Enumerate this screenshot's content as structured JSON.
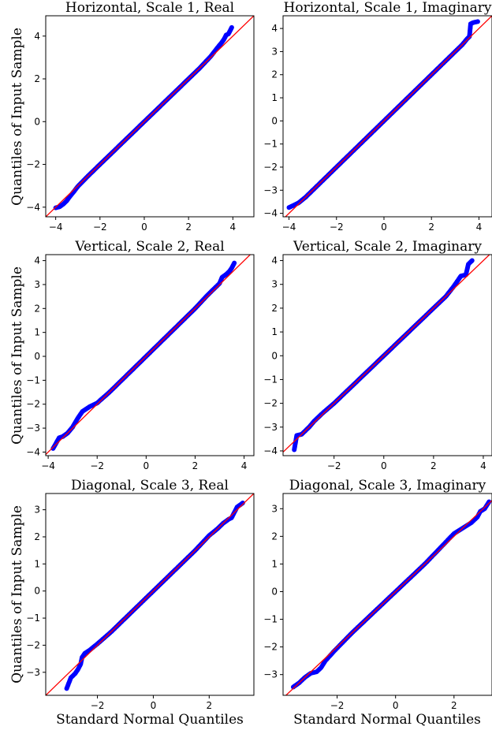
{
  "figure": {
    "ylabel": "Quantiles of Input Sample",
    "xlabel": "Standard Normal Quantiles",
    "ref_line_color": "#ff0000",
    "point_color": "#0000ff"
  },
  "chart_data": [
    {
      "type": "scatter",
      "title": "Horizontal, Scale 1, Real",
      "xlim": [
        -4.45,
        4.95
      ],
      "ylim": [
        -4.45,
        4.95
      ],
      "xticks": [
        -4,
        -2,
        0,
        2,
        4
      ],
      "xtick_labels": [
        "−4",
        "−2",
        "0",
        "2",
        "4"
      ],
      "yticks": [
        -4,
        -2,
        0,
        2,
        4
      ],
      "ytick_labels": [
        "−4",
        "−2",
        "0",
        "2",
        "4"
      ],
      "show_xlabel": false,
      "show_ylabel": true,
      "points": [
        [
          -4.0,
          -4.03
        ],
        [
          -3.82,
          -3.98
        ],
        [
          -3.65,
          -3.85
        ],
        [
          -3.5,
          -3.7
        ],
        [
          -3.4,
          -3.55
        ],
        [
          -3.2,
          -3.3
        ],
        [
          -3.0,
          -3.03
        ],
        [
          -2.5,
          -2.5
        ],
        [
          -2.0,
          -2.0
        ],
        [
          -1.5,
          -1.5
        ],
        [
          -1.0,
          -1.0
        ],
        [
          -0.5,
          -0.5
        ],
        [
          0,
          0
        ],
        [
          0.5,
          0.5
        ],
        [
          1.0,
          1.0
        ],
        [
          1.5,
          1.5
        ],
        [
          2.0,
          2.0
        ],
        [
          2.5,
          2.5
        ],
        [
          3.0,
          3.05
        ],
        [
          3.3,
          3.45
        ],
        [
          3.5,
          3.7
        ],
        [
          3.6,
          3.85
        ],
        [
          3.7,
          4.05
        ],
        [
          3.8,
          4.1
        ],
        [
          3.95,
          4.4
        ]
      ]
    },
    {
      "type": "scatter",
      "title": "Horizontal, Scale 1, Imaginary",
      "xlim": [
        -4.25,
        4.55
      ],
      "ylim": [
        -4.15,
        4.55
      ],
      "xticks": [
        -4,
        -2,
        0,
        2,
        4
      ],
      "xtick_labels": [
        "−4",
        "−2",
        "0",
        "2",
        "4"
      ],
      "yticks": [
        -4,
        -3,
        -2,
        -1,
        0,
        1,
        2,
        3,
        4
      ],
      "ytick_labels": [
        "−4",
        "−3",
        "−2",
        "−1",
        "0",
        "1",
        "2",
        "3",
        "4"
      ],
      "show_xlabel": false,
      "show_ylabel": false,
      "points": [
        [
          -4.0,
          -3.75
        ],
        [
          -3.8,
          -3.65
        ],
        [
          -3.6,
          -3.55
        ],
        [
          -3.3,
          -3.3
        ],
        [
          -3.0,
          -3.0
        ],
        [
          -2.5,
          -2.5
        ],
        [
          -2.0,
          -2.0
        ],
        [
          -1.5,
          -1.5
        ],
        [
          -1.0,
          -1.0
        ],
        [
          -0.5,
          -0.5
        ],
        [
          0,
          0
        ],
        [
          0.5,
          0.5
        ],
        [
          1.0,
          1.0
        ],
        [
          1.5,
          1.5
        ],
        [
          2.0,
          2.0
        ],
        [
          2.5,
          2.5
        ],
        [
          3.0,
          3.0
        ],
        [
          3.3,
          3.3
        ],
        [
          3.5,
          3.55
        ],
        [
          3.6,
          3.65
        ],
        [
          3.65,
          4.2
        ],
        [
          3.75,
          4.25
        ],
        [
          3.95,
          4.3
        ]
      ]
    },
    {
      "type": "scatter",
      "title": "Vertical, Scale 2, Real",
      "xlim": [
        -4.1,
        4.4
      ],
      "ylim": [
        -4.15,
        4.25
      ],
      "xticks": [
        -4,
        -2,
        0,
        2,
        4
      ],
      "xtick_labels": [
        "−4",
        "−2",
        "0",
        "2",
        "4"
      ],
      "yticks": [
        -4,
        -3,
        -2,
        -1,
        0,
        1,
        2,
        3,
        4
      ],
      "ytick_labels": [
        "−4",
        "−3",
        "−2",
        "−1",
        "0",
        "1",
        "2",
        "3",
        "4"
      ],
      "show_xlabel": false,
      "show_ylabel": true,
      "points": [
        [
          -3.8,
          -3.85
        ],
        [
          -3.55,
          -3.4
        ],
        [
          -3.4,
          -3.35
        ],
        [
          -3.2,
          -3.2
        ],
        [
          -3.0,
          -2.95
        ],
        [
          -2.8,
          -2.6
        ],
        [
          -2.6,
          -2.3
        ],
        [
          -2.3,
          -2.1
        ],
        [
          -2.0,
          -1.95
        ],
        [
          -1.5,
          -1.5
        ],
        [
          -1.0,
          -1.0
        ],
        [
          -0.5,
          -0.5
        ],
        [
          0,
          0
        ],
        [
          0.5,
          0.5
        ],
        [
          1.0,
          1.0
        ],
        [
          1.5,
          1.5
        ],
        [
          2.0,
          2.0
        ],
        [
          2.5,
          2.55
        ],
        [
          2.8,
          2.85
        ],
        [
          3.0,
          3.05
        ],
        [
          3.1,
          3.3
        ],
        [
          3.3,
          3.45
        ],
        [
          3.4,
          3.55
        ],
        [
          3.5,
          3.7
        ],
        [
          3.6,
          3.9
        ]
      ]
    },
    {
      "type": "scatter",
      "title": "Vertical, Scale 2, Imaginary",
      "xlim": [
        -4.05,
        4.35
      ],
      "ylim": [
        -4.2,
        4.25
      ],
      "xticks": [
        -2,
        0,
        2,
        4
      ],
      "xtick_labels": [
        "−2",
        "0",
        "2",
        "4"
      ],
      "yticks": [
        -4,
        -3,
        -2,
        -1,
        0,
        1,
        2,
        3,
        4
      ],
      "ytick_labels": [
        "−4",
        "−3",
        "−2",
        "−1",
        "0",
        "1",
        "2",
        "3",
        "4"
      ],
      "show_xlabel": false,
      "show_ylabel": false,
      "points": [
        [
          -3.6,
          -3.95
        ],
        [
          -3.5,
          -3.35
        ],
        [
          -3.3,
          -3.3
        ],
        [
          -3.1,
          -3.1
        ],
        [
          -3.0,
          -3.0
        ],
        [
          -2.8,
          -2.75
        ],
        [
          -2.5,
          -2.45
        ],
        [
          -2.0,
          -2.0
        ],
        [
          -1.5,
          -1.5
        ],
        [
          -1.0,
          -1.0
        ],
        [
          -0.5,
          -0.5
        ],
        [
          0,
          0
        ],
        [
          0.5,
          0.5
        ],
        [
          1.0,
          1.0
        ],
        [
          1.5,
          1.5
        ],
        [
          2.0,
          2.0
        ],
        [
          2.5,
          2.5
        ],
        [
          2.8,
          2.9
        ],
        [
          3.0,
          3.2
        ],
        [
          3.1,
          3.35
        ],
        [
          3.3,
          3.4
        ],
        [
          3.4,
          3.85
        ],
        [
          3.55,
          4.0
        ]
      ]
    },
    {
      "type": "scatter",
      "title": "Diagonal, Scale 3, Real",
      "xlim": [
        -3.85,
        3.6
      ],
      "ylim": [
        -3.85,
        3.6
      ],
      "xticks": [
        -2,
        0,
        2
      ],
      "xtick_labels": [
        "−2",
        "0",
        "2"
      ],
      "yticks": [
        -3,
        -2,
        -1,
        0,
        1,
        2,
        3
      ],
      "ytick_labels": [
        "−3",
        "−2",
        "−1",
        "0",
        "1",
        "2",
        "3"
      ],
      "show_xlabel": true,
      "show_ylabel": true,
      "points": [
        [
          -3.1,
          -3.6
        ],
        [
          -2.95,
          -3.2
        ],
        [
          -2.8,
          -3.05
        ],
        [
          -2.7,
          -2.9
        ],
        [
          -2.6,
          -2.7
        ],
        [
          -2.55,
          -2.45
        ],
        [
          -2.45,
          -2.3
        ],
        [
          -2.3,
          -2.2
        ],
        [
          -2.0,
          -1.95
        ],
        [
          -1.5,
          -1.5
        ],
        [
          -1.0,
          -1.0
        ],
        [
          -0.5,
          -0.5
        ],
        [
          0,
          0
        ],
        [
          0.5,
          0.5
        ],
        [
          1.0,
          1.0
        ],
        [
          1.5,
          1.5
        ],
        [
          2.0,
          2.05
        ],
        [
          2.3,
          2.3
        ],
        [
          2.5,
          2.5
        ],
        [
          2.7,
          2.65
        ],
        [
          2.8,
          2.7
        ],
        [
          3.0,
          3.1
        ],
        [
          3.2,
          3.25
        ]
      ]
    },
    {
      "type": "scatter",
      "title": "Diagonal, Scale 3, Imaginary",
      "xlim": [
        -3.85,
        3.3
      ],
      "ylim": [
        -3.75,
        3.55
      ],
      "xticks": [
        -2,
        0,
        2
      ],
      "xtick_labels": [
        "−2",
        "0",
        "2"
      ],
      "yticks": [
        -3,
        -2,
        -1,
        0,
        1,
        2,
        3
      ],
      "ytick_labels": [
        "−3",
        "−2",
        "−1",
        "0",
        "1",
        "2",
        "3"
      ],
      "show_xlabel": true,
      "show_ylabel": false,
      "points": [
        [
          -3.5,
          -3.45
        ],
        [
          -3.3,
          -3.3
        ],
        [
          -3.1,
          -3.1
        ],
        [
          -2.9,
          -2.95
        ],
        [
          -2.7,
          -2.9
        ],
        [
          -2.55,
          -2.75
        ],
        [
          -2.4,
          -2.5
        ],
        [
          -2.1,
          -2.15
        ],
        [
          -1.5,
          -1.5
        ],
        [
          -1.0,
          -1.0
        ],
        [
          -0.5,
          -0.5
        ],
        [
          0,
          0
        ],
        [
          0.5,
          0.5
        ],
        [
          1.0,
          1.0
        ],
        [
          1.5,
          1.55
        ],
        [
          2.0,
          2.1
        ],
        [
          2.3,
          2.3
        ],
        [
          2.6,
          2.5
        ],
        [
          2.8,
          2.7
        ],
        [
          2.9,
          2.9
        ],
        [
          3.05,
          3.0
        ],
        [
          3.2,
          3.25
        ]
      ]
    }
  ]
}
